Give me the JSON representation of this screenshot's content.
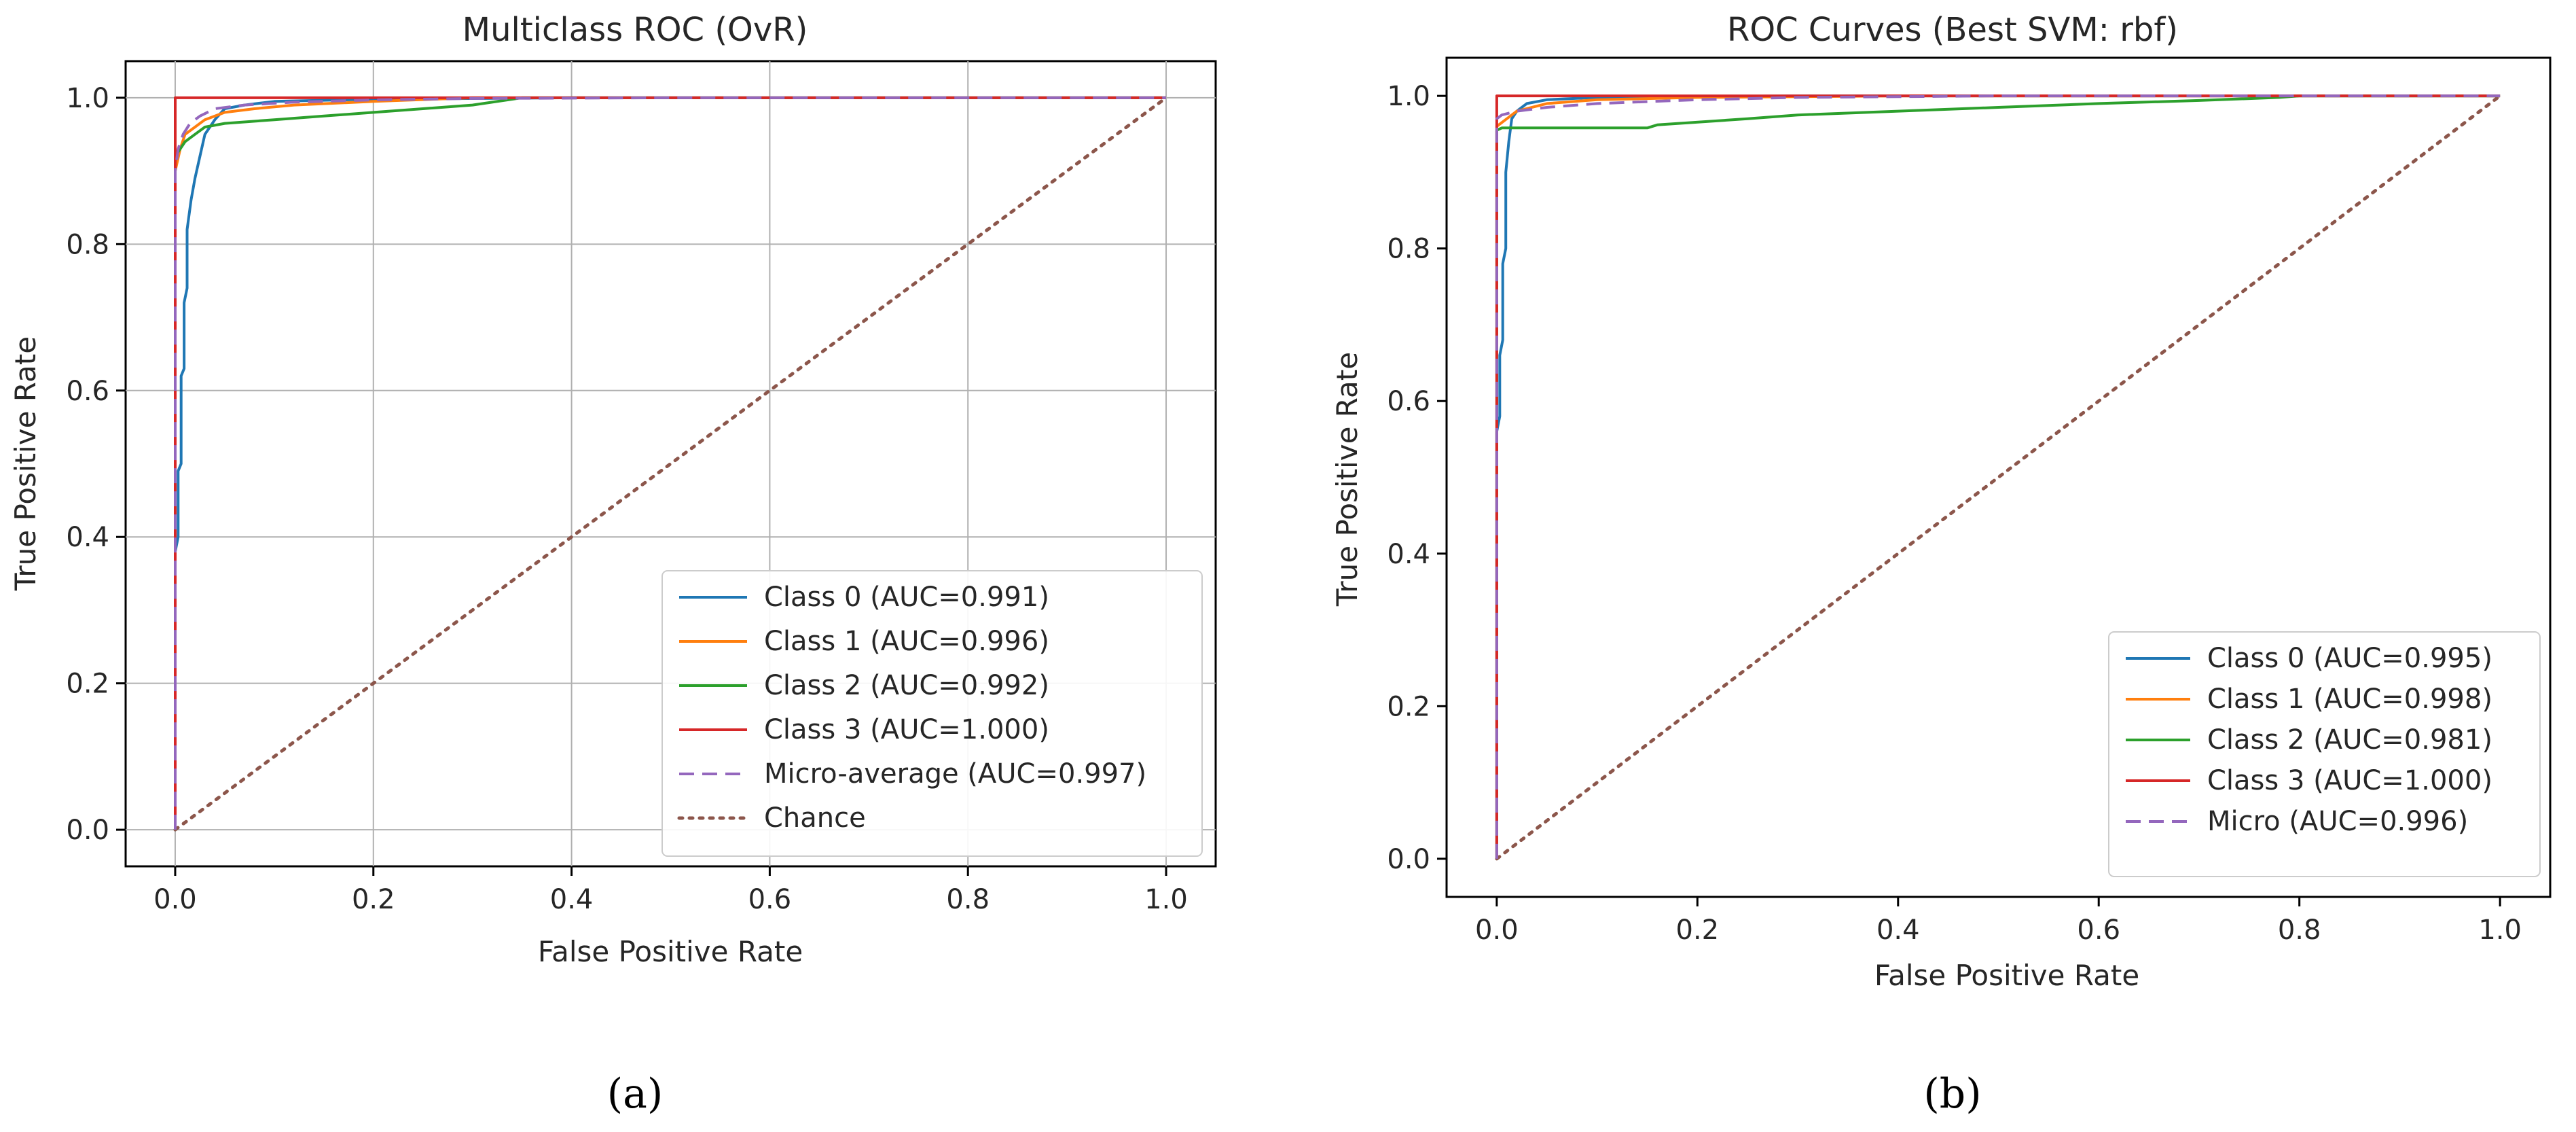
{
  "chart_data": [
    {
      "type": "line",
      "title": "Multiclass ROC (OvR)",
      "xlabel": "False Positive Rate",
      "ylabel": "True Positive Rate",
      "xlim": [
        -0.05,
        1.05
      ],
      "ylim": [
        -0.05,
        1.05
      ],
      "xticks": [
        "0.0",
        "0.2",
        "0.4",
        "0.6",
        "0.8",
        "1.0"
      ],
      "yticks": [
        "0.0",
        "0.2",
        "0.4",
        "0.6",
        "0.8",
        "1.0"
      ],
      "grid": true,
      "legend_position": "lower-right",
      "caption": "(a)",
      "series": [
        {
          "name": "Class 0 (AUC=0.991)",
          "color": "#1f77b4",
          "dash": "solid",
          "x": [
            0,
            0,
            0.003,
            0.003,
            0.006,
            0.006,
            0.009,
            0.009,
            0.012,
            0.012,
            0.016,
            0.02,
            0.025,
            0.03,
            0.04,
            0.05,
            0.07,
            0.1,
            0.2,
            0.4,
            1.0
          ],
          "y": [
            0,
            0.38,
            0.4,
            0.49,
            0.5,
            0.62,
            0.63,
            0.72,
            0.74,
            0.82,
            0.86,
            0.89,
            0.92,
            0.95,
            0.97,
            0.985,
            0.99,
            0.995,
            0.998,
            1.0,
            1.0
          ]
        },
        {
          "name": "Class 1 (AUC=0.996)",
          "color": "#ff7f0e",
          "dash": "solid",
          "x": [
            0,
            0,
            0.005,
            0.01,
            0.02,
            0.03,
            0.05,
            0.08,
            0.12,
            0.2,
            0.3,
            1.0
          ],
          "y": [
            0,
            0.9,
            0.93,
            0.95,
            0.96,
            0.97,
            0.98,
            0.985,
            0.99,
            0.995,
            1.0,
            1.0
          ]
        },
        {
          "name": "Class 2 (AUC=0.992)",
          "color": "#2ca02c",
          "dash": "solid",
          "x": [
            0,
            0,
            0.005,
            0.01,
            0.02,
            0.03,
            0.05,
            0.1,
            0.15,
            0.2,
            0.25,
            0.3,
            0.35,
            0.4,
            1.0
          ],
          "y": [
            0,
            0.92,
            0.93,
            0.94,
            0.95,
            0.96,
            0.965,
            0.97,
            0.975,
            0.98,
            0.985,
            0.99,
            1.0,
            1.0,
            1.0
          ]
        },
        {
          "name": "Class 3 (AUC=1.000)",
          "color": "#d62728",
          "dash": "solid",
          "x": [
            0,
            0,
            1.0
          ],
          "y": [
            0,
            1.0,
            1.0
          ]
        },
        {
          "name": "Micro-average (AUC=0.997)",
          "color": "#9467bd",
          "dash": "dashed",
          "x": [
            0,
            0,
            0.003,
            0.008,
            0.015,
            0.025,
            0.04,
            0.07,
            0.12,
            0.2,
            0.3,
            0.5,
            1.0
          ],
          "y": [
            0,
            0.9,
            0.93,
            0.95,
            0.965,
            0.975,
            0.985,
            0.99,
            0.994,
            0.997,
            0.999,
            1.0,
            1.0
          ]
        },
        {
          "name": "Chance",
          "color": "#8c564b",
          "dash": "dotted",
          "x": [
            0,
            1.0
          ],
          "y": [
            0,
            1.0
          ]
        }
      ]
    },
    {
      "type": "line",
      "title": "ROC Curves (Best SVM: rbf)",
      "xlabel": "False Positive Rate",
      "ylabel": "True Positive Rate",
      "xlim": [
        -0.05,
        1.05
      ],
      "ylim": [
        -0.05,
        1.05
      ],
      "xticks": [
        "0.0",
        "0.2",
        "0.4",
        "0.6",
        "0.8",
        "1.0"
      ],
      "yticks": [
        "0.0",
        "0.2",
        "0.4",
        "0.6",
        "0.8",
        "1.0"
      ],
      "grid": false,
      "legend_position": "lower-right",
      "caption": "(b)",
      "series": [
        {
          "name": "Class 0 (AUC=0.995)",
          "color": "#1f77b4",
          "dash": "solid",
          "x": [
            0,
            0,
            0.003,
            0.003,
            0.006,
            0.006,
            0.009,
            0.009,
            0.012,
            0.015,
            0.02,
            0.03,
            0.05,
            0.1,
            0.3,
            1.0
          ],
          "y": [
            0,
            0.56,
            0.58,
            0.66,
            0.68,
            0.78,
            0.8,
            0.9,
            0.94,
            0.97,
            0.98,
            0.99,
            0.995,
            0.998,
            1.0,
            1.0
          ]
        },
        {
          "name": "Class 1 (AUC=0.998)",
          "color": "#ff7f0e",
          "dash": "solid",
          "x": [
            0,
            0,
            0.01,
            0.02,
            0.05,
            0.1,
            0.2,
            0.4,
            1.0
          ],
          "y": [
            0,
            0.96,
            0.97,
            0.98,
            0.99,
            0.995,
            0.998,
            1.0,
            1.0
          ]
        },
        {
          "name": "Class 2 (AUC=0.981)",
          "color": "#2ca02c",
          "dash": "solid",
          "x": [
            0,
            0,
            0.005,
            0.15,
            0.16,
            0.25,
            0.3,
            0.4,
            0.5,
            0.6,
            0.7,
            0.78,
            0.8,
            1.0
          ],
          "y": [
            0,
            0.955,
            0.958,
            0.958,
            0.962,
            0.97,
            0.975,
            0.98,
            0.985,
            0.99,
            0.994,
            0.998,
            1.0,
            1.0
          ]
        },
        {
          "name": "Class 3 (AUC=1.000)",
          "color": "#d62728",
          "dash": "solid",
          "x": [
            0,
            0,
            1.0
          ],
          "y": [
            0,
            1.0,
            1.0
          ]
        },
        {
          "name": "Micro (AUC=0.996)",
          "color": "#9467bd",
          "dash": "dashed",
          "x": [
            0,
            0,
            0.005,
            0.02,
            0.05,
            0.1,
            0.2,
            0.3,
            0.5,
            1.0
          ],
          "y": [
            0,
            0.97,
            0.975,
            0.98,
            0.985,
            0.99,
            0.995,
            0.998,
            1.0,
            1.0
          ]
        },
        {
          "name": "",
          "color": "#8c564b",
          "dash": "dotted",
          "x": [
            0,
            1.0
          ],
          "y": [
            0,
            1.0
          ]
        }
      ]
    }
  ]
}
